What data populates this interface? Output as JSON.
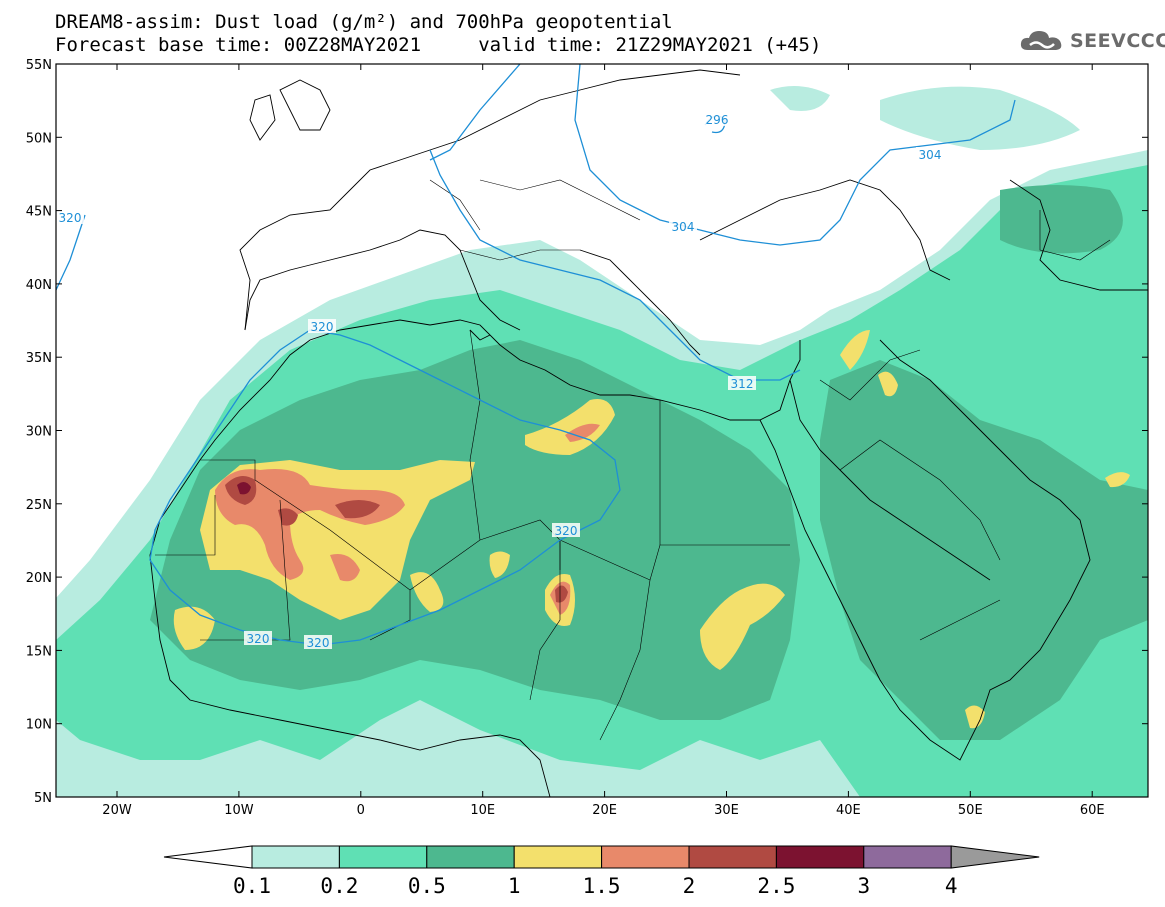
{
  "title": {
    "line1": "DREAM8-assim: Dust load (g/m²) and 700hPa geopotential",
    "line2": "Forecast base time: 00Z28MAY2021     valid time: 21Z29MAY2021 (+45)"
  },
  "logo": {
    "text": "SEEVCCC",
    "icon": "cloud-icon"
  },
  "map": {
    "lat_labels": [
      "55N",
      "50N",
      "45N",
      "40N",
      "35N",
      "30N",
      "25N",
      "20N",
      "15N",
      "10N",
      "5N"
    ],
    "lon_labels": [
      "20W",
      "10W",
      "0",
      "10E",
      "20E",
      "30E",
      "40E",
      "50E",
      "60E"
    ],
    "contour_labels": [
      "320",
      "320",
      "320",
      "320",
      "320",
      "312",
      "304",
      "304",
      "296"
    ]
  },
  "colorbar": {
    "labels": [
      "0.1",
      "0.2",
      "0.5",
      "1",
      "1.5",
      "2",
      "2.5",
      "3",
      "4"
    ],
    "colors": [
      "#b8ece0",
      "#5fe0b4",
      "#4db88f",
      "#f3e06c",
      "#e8896a",
      "#b04a42",
      "#7c1230",
      "#8e6a9c",
      "#9a9a9a"
    ]
  },
  "colors": {
    "contour": "#1e8fd6",
    "border": "#000000"
  }
}
